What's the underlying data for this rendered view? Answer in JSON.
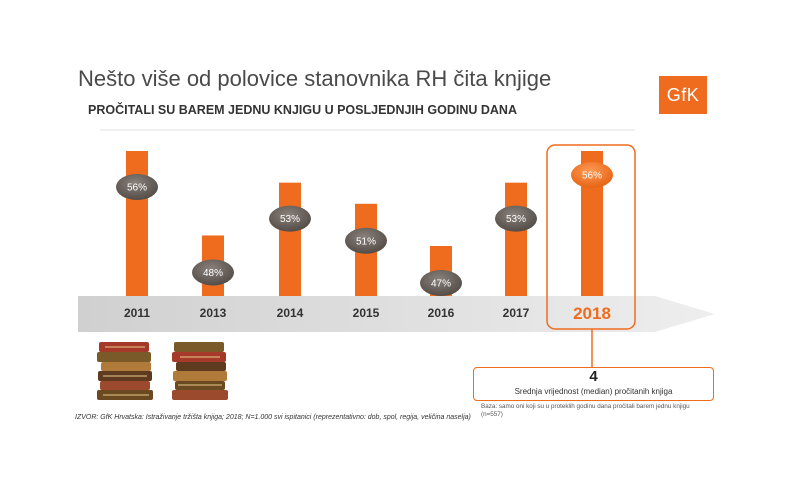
{
  "header": {
    "title": "Nešto više od polovice stanovnika RH čita knjige",
    "subtitle": "PROČITALI SU BAREM JEDNU KNJIGU U POSLJEDNJIH GODINU DANA",
    "logo_text": "GfK"
  },
  "chart_data": {
    "type": "bar",
    "categories": [
      "2011",
      "2013",
      "2014",
      "2015",
      "2016",
      "2017",
      "2018"
    ],
    "values": [
      56,
      48,
      53,
      51,
      47,
      53,
      56
    ],
    "data_labels": [
      "56%",
      "48%",
      "53%",
      "51%",
      "47%",
      "53%",
      "56%"
    ],
    "highlight_category": "2018",
    "bar_color": "#ef6c1f",
    "label_bubble_color": "#615954",
    "highlight_bubble_color": "#ef6c1f",
    "axis_band_color": "#d9d9d9"
  },
  "median": {
    "value": "4",
    "label": "Srednja vrijednost (median) pročitanih knjiga"
  },
  "base_note": "Baza: samo oni koji su u proteklih godinu dana pročitali barem jednu knjigu (n=557)",
  "source": "IZVOR: GfK Hrvatska: Istraživanje tržišta knjiga; 2018; N=1.000 svi ispitanici (reprezentativno: dob, spol, regija, veličina naselja)"
}
